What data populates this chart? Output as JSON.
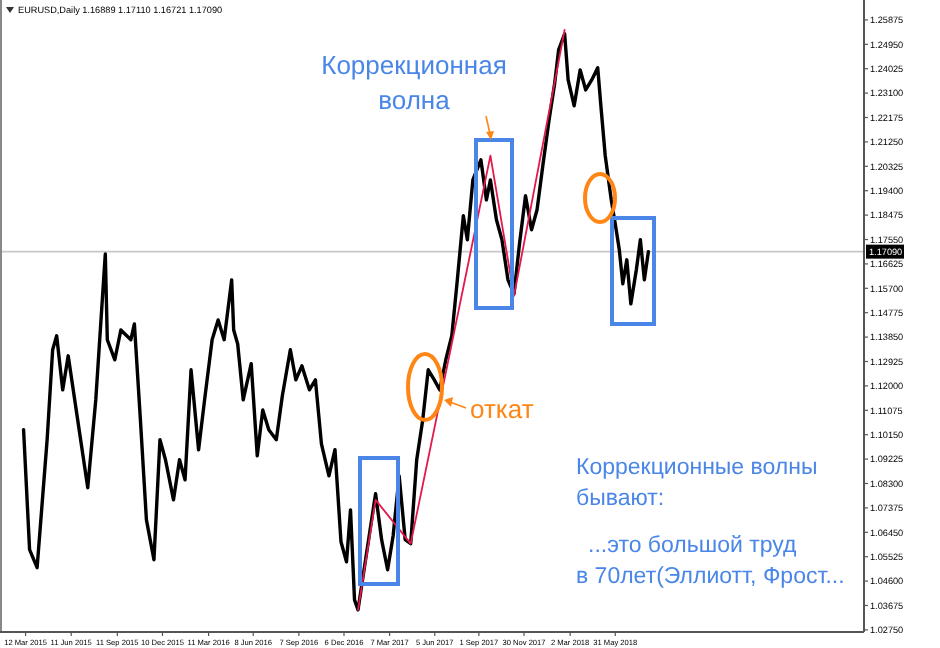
{
  "chart_data": {
    "type": "line",
    "title": "EURUSD,Daily  1.16889 1.17110 1.16721 1.17090",
    "xlim": [
      "2015-01-20",
      "2019-10-09"
    ],
    "xticks": [
      {
        "value": "2015-03-12",
        "label": "12 Mar 2015"
      },
      {
        "value": "2015-06-11",
        "label": "11 Jun 2015"
      },
      {
        "value": "2015-09-11",
        "label": "11 Sep 2015"
      },
      {
        "value": "2015-12-10",
        "label": "10 Dec 2015"
      },
      {
        "value": "2016-03-11",
        "label": "11 Mar 2016"
      },
      {
        "value": "2016-06-08",
        "label": "8 Jun 2016"
      },
      {
        "value": "2016-09-07",
        "label": "7 Sep 2016"
      },
      {
        "value": "2016-12-06",
        "label": "6 Dec 2016"
      },
      {
        "value": "2017-03-07",
        "label": "7 Mar 2017"
      },
      {
        "value": "2017-06-05",
        "label": "5 Jun 2017"
      },
      {
        "value": "2017-09-01",
        "label": "1 Sep 2017"
      },
      {
        "value": "2017-11-30",
        "label": "30 Nov 2017"
      },
      {
        "value": "2018-03-02",
        "label": "2 Mar 2018"
      },
      {
        "value": "2018-05-31",
        "label": "31 May 2018"
      }
    ],
    "ylim": [
      1.0267,
      1.2663
    ],
    "yticks": [
      1.25875,
      {
        "value": 1.2495,
        "label": "1.24950"
      },
      1.24025,
      {
        "value": 1.231,
        "label": "1.23100"
      },
      1.22175,
      {
        "value": 1.2125,
        "label": "1.21250"
      },
      1.20325,
      {
        "value": 1.194,
        "label": "1.19400"
      },
      1.18475,
      {
        "value": 1.1755,
        "label": "1.17550"
      },
      1.16625,
      {
        "value": 1.157,
        "label": "1.15700"
      },
      1.14775,
      {
        "value": 1.1385,
        "label": "1.13850"
      },
      1.12925,
      {
        "value": 1.12,
        "label": "1.12000"
      },
      1.11075,
      {
        "value": 1.1015,
        "label": "1.10150"
      },
      1.09225,
      {
        "value": 1.083,
        "label": "1.08300"
      },
      1.07375,
      {
        "value": 1.0645,
        "label": "1.06450"
      },
      1.05525,
      {
        "value": 1.046,
        "label": "1.04600"
      },
      1.03675,
      {
        "value": 1.0275,
        "label": "1.02750"
      }
    ],
    "ref_lines": [
      {
        "axis": "y",
        "value": 1.1709,
        "label": "1.17090",
        "color": "#c8c8c8"
      }
    ],
    "series": [
      {
        "color": "#000000",
        "x": [
          "2015-03-08",
          "2015-03-20",
          "2015-04-04",
          "2015-04-24",
          "2015-05-05",
          "2015-05-13",
          "2015-05-25",
          "2015-06-05",
          "2015-06-21",
          "2015-07-14",
          "2015-07-30",
          "2015-08-18",
          "2015-08-22",
          "2015-09-06",
          "2015-09-18",
          "2015-10-08",
          "2015-10-15",
          "2015-10-27",
          "2015-11-08",
          "2015-11-23",
          "2015-12-05",
          "2015-12-16",
          "2016-01-01",
          "2016-01-13",
          "2016-01-24",
          "2016-02-05",
          "2016-02-20",
          "2016-03-03",
          "2016-03-18",
          "2016-03-30",
          "2016-04-11",
          "2016-04-26",
          "2016-04-30",
          "2016-05-08",
          "2016-05-19",
          "2016-06-04",
          "2016-06-16",
          "2016-06-27",
          "2016-07-09",
          "2016-07-24",
          "2016-08-05",
          "2016-08-21",
          "2016-09-01",
          "2016-09-13",
          "2016-09-28",
          "2016-10-10",
          "2016-10-22",
          "2016-11-06",
          "2016-11-18",
          "2016-11-30",
          "2016-12-11",
          "2016-12-19",
          "2016-12-27",
          "2017-01-03",
          "2017-01-15",
          "2017-01-27",
          "2017-02-07",
          "2017-02-19",
          "2017-03-03",
          "2017-03-14",
          "2017-03-26",
          "2017-04-07",
          "2017-04-18",
          "2017-04-30",
          "2017-05-12",
          "2017-05-23",
          "2017-06-04",
          "2017-06-15",
          "2017-06-27",
          "2017-07-09",
          "2017-07-20",
          "2017-08-01",
          "2017-08-09",
          "2017-08-20",
          "2017-09-05",
          "2017-09-16",
          "2017-09-24",
          "2017-10-06",
          "2017-10-17",
          "2017-10-29",
          "2017-11-10",
          "2017-11-21",
          "2017-12-03",
          "2017-12-15",
          "2017-12-26",
          "2018-01-07",
          "2018-01-19",
          "2018-01-30",
          "2018-02-07",
          "2018-02-19",
          "2018-02-26",
          "2018-03-10",
          "2018-03-22",
          "2018-04-02",
          "2018-04-14",
          "2018-04-26",
          "2018-05-03",
          "2018-05-11",
          "2018-05-23",
          "2018-05-31",
          "2018-06-08",
          "2018-06-15",
          "2018-06-23",
          "2018-07-01",
          "2018-07-12",
          "2018-07-20",
          "2018-07-28",
          "2018-08-05"
        ],
        "values": [
          1.1034,
          1.0579,
          1.0511,
          1.0996,
          1.1337,
          1.139,
          1.1185,
          1.1314,
          1.1109,
          1.0814,
          1.1147,
          1.17,
          1.1375,
          1.1299,
          1.1412,
          1.1375,
          1.1435,
          1.1071,
          1.0692,
          1.0541,
          1.0996,
          1.092,
          1.0768,
          1.092,
          1.0844,
          1.1261,
          1.0958,
          1.1147,
          1.1375,
          1.145,
          1.1375,
          1.1602,
          1.1412,
          1.1359,
          1.1147,
          1.1284,
          1.0935,
          1.1109,
          1.1034,
          1.0996,
          1.1162,
          1.1337,
          1.1223,
          1.1276,
          1.1185,
          1.1223,
          1.098,
          1.0859,
          1.0958,
          1.0609,
          1.0533,
          1.073,
          1.0389,
          1.0351,
          1.0503,
          1.0654,
          1.0791,
          1.0617,
          1.0503,
          1.0632,
          1.0859,
          1.0617,
          1.0602,
          1.092,
          1.1071,
          1.1261,
          1.1223,
          1.1185,
          1.1299,
          1.139,
          1.1602,
          1.1845,
          1.1754,
          1.1981,
          1.2057,
          1.1905,
          1.1981,
          1.183,
          1.1754,
          1.1602,
          1.1549,
          1.1739,
          1.1921,
          1.1792,
          1.1868,
          1.2042,
          1.2209,
          1.2345,
          1.2474,
          1.2535,
          1.236,
          1.2262,
          1.2398,
          1.2322,
          1.236,
          1.2406,
          1.2246,
          1.2072,
          1.1905,
          1.1814,
          1.1716,
          1.1587,
          1.1678,
          1.1511,
          1.164,
          1.1754,
          1.1602,
          1.1709
        ]
      },
      {
        "color": "#e3194b",
        "x": [
          "2017-01-03",
          "2017-02-07",
          "2017-04-18",
          "2017-09-24",
          "2017-11-10",
          "2018-02-19"
        ],
        "values": [
          1.0351,
          1.0768,
          1.0602,
          1.2073,
          1.1541,
          1.255
        ]
      }
    ],
    "annotations": [
      "Коррекционная\nволна",
      "откат",
      "Коррекционные волны\nбывают:",
      "...это большой труд\nв 70лет(Эллиотт, Фрост..."
    ]
  }
}
